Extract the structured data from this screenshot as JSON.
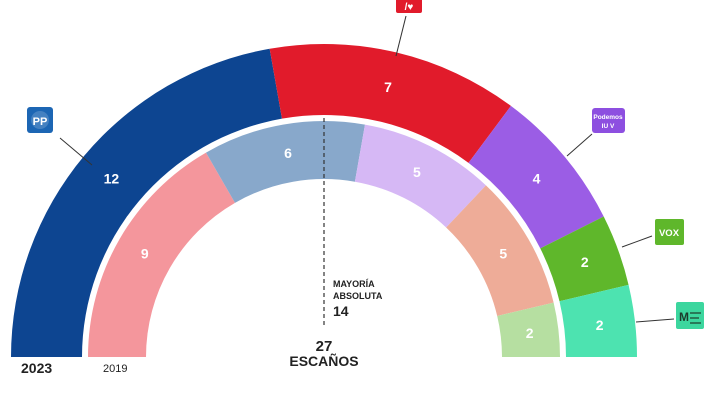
{
  "chart_data": {
    "type": "parliament-semicircle",
    "total_seats": 27,
    "total_label": "ESCAÑOS",
    "majority": {
      "label_line1": "MAYORÍA",
      "label_line2": "ABSOLUTA",
      "value": 14
    },
    "rings": [
      {
        "year": "2023",
        "series": [
          {
            "party": "PP",
            "seats": 12,
            "color": "#0d4591"
          },
          {
            "party": "PSOE",
            "seats": 7,
            "color": "#e11b2b"
          },
          {
            "party": "Podemos",
            "seats": 4,
            "color": "#9b5de5"
          },
          {
            "party": "VOX",
            "seats": 2,
            "color": "#5fb72b"
          },
          {
            "party": "Más Madrid",
            "seats": 2,
            "color": "#4de3b0"
          }
        ]
      },
      {
        "year": "2019",
        "series": [
          {
            "party": "PP",
            "seats": 9,
            "color": "#f4969c"
          },
          {
            "party": "PSOE",
            "seats": 6,
            "color": "#88a8cb"
          },
          {
            "party": "Podemos",
            "seats": 5,
            "color": "#d6b8f5"
          },
          {
            "party": "VOX",
            "seats": 5,
            "color": "#eeac98"
          },
          {
            "party": "Más Madrid",
            "seats": 2,
            "color": "#b6dfa1"
          }
        ]
      }
    ]
  },
  "logos": {
    "pp": {
      "text": "PP",
      "color": "#1c66b4"
    },
    "psoe": {
      "text": "/♥",
      "color": "#e11b2b"
    },
    "podemos": {
      "text_line1": "Podemos",
      "text_line2": "IU V",
      "color": "#8d4fe0"
    },
    "vox": {
      "text": "VOX",
      "color": "#5fb72b"
    },
    "mas_madrid": {
      "text": "M",
      "color": "#3cd69e"
    }
  }
}
